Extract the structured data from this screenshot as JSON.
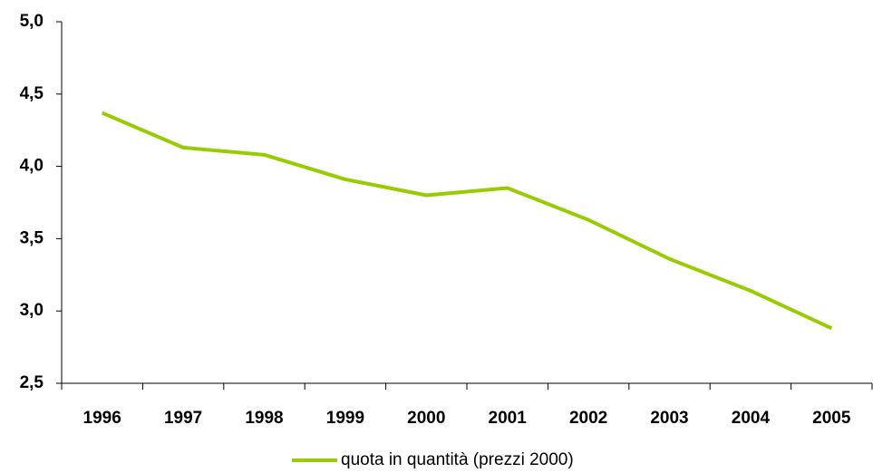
{
  "chart_data": {
    "type": "line",
    "categories": [
      "1996",
      "1997",
      "1998",
      "1999",
      "2000",
      "2001",
      "2002",
      "2003",
      "2004",
      "2005"
    ],
    "series": [
      {
        "name": "quota in quantità (prezzi 2000)",
        "color": "#99cc00",
        "values": [
          4.37,
          4.13,
          4.08,
          3.91,
          3.8,
          3.85,
          3.63,
          3.36,
          3.14,
          2.88
        ]
      }
    ],
    "ylim": [
      2.5,
      5.0
    ],
    "yticks": [
      {
        "value": 2.5,
        "label": "2,5"
      },
      {
        "value": 3.0,
        "label": "3,0"
      },
      {
        "value": 3.5,
        "label": "3,5"
      },
      {
        "value": 4.0,
        "label": "4,0"
      },
      {
        "value": 4.5,
        "label": "4,5"
      },
      {
        "value": 5.0,
        "label": "5,0"
      }
    ],
    "legend": "bottom"
  }
}
